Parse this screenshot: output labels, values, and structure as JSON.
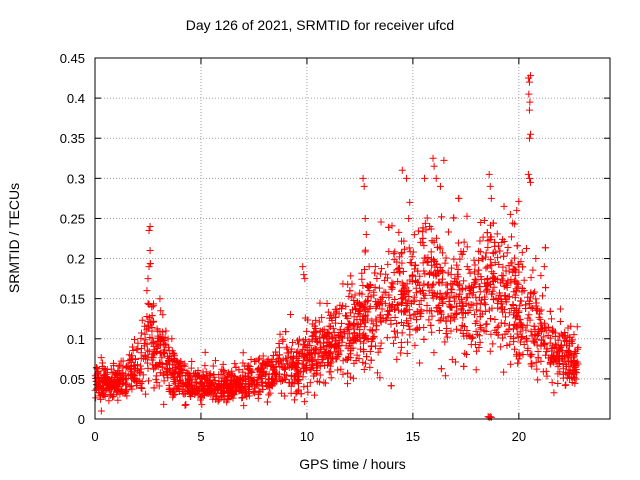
{
  "chart_data": {
    "type": "scatter",
    "title": "Day 126 of 2021, SRMTID for receiver ufcd",
    "xlabel": "GPS time / hours",
    "ylabel": "SRMTID / TECUs",
    "xlim": [
      0,
      24.3
    ],
    "ylim": [
      0,
      0.45
    ],
    "x_ticks": [
      0,
      5,
      10,
      15,
      20
    ],
    "x_tick_labels": [
      "0",
      "5",
      "10",
      "15",
      "20"
    ],
    "y_ticks": [
      0,
      0.05,
      0.1,
      0.15,
      0.2,
      0.25,
      0.3,
      0.35,
      0.4,
      0.45
    ],
    "y_tick_labels": [
      "0",
      "0.05",
      "0.1",
      "0.15",
      "0.2",
      "0.25",
      "0.3",
      "0.35",
      "0.4",
      "0.45"
    ],
    "grid": true,
    "marker": "+",
    "series": [
      {
        "name": "SRMTID",
        "color": "#ff0000",
        "profile_note": "approximate envelope of the dense scatter: hour, typical value, spread",
        "profile": [
          {
            "x": 0.0,
            "y": 0.045,
            "spread": 0.012
          },
          {
            "x": 1.0,
            "y": 0.045,
            "spread": 0.015
          },
          {
            "x": 2.0,
            "y": 0.065,
            "spread": 0.02
          },
          {
            "x": 2.5,
            "y": 0.1,
            "spread": 0.035
          },
          {
            "x": 3.0,
            "y": 0.085,
            "spread": 0.03
          },
          {
            "x": 3.5,
            "y": 0.065,
            "spread": 0.025
          },
          {
            "x": 4.5,
            "y": 0.042,
            "spread": 0.012
          },
          {
            "x": 6.0,
            "y": 0.04,
            "spread": 0.013
          },
          {
            "x": 7.5,
            "y": 0.045,
            "spread": 0.015
          },
          {
            "x": 8.5,
            "y": 0.065,
            "spread": 0.018
          },
          {
            "x": 9.5,
            "y": 0.065,
            "spread": 0.025
          },
          {
            "x": 10.5,
            "y": 0.085,
            "spread": 0.028
          },
          {
            "x": 12.0,
            "y": 0.105,
            "spread": 0.035
          },
          {
            "x": 13.5,
            "y": 0.14,
            "spread": 0.045
          },
          {
            "x": 15.0,
            "y": 0.165,
            "spread": 0.05
          },
          {
            "x": 16.0,
            "y": 0.165,
            "spread": 0.05
          },
          {
            "x": 17.0,
            "y": 0.145,
            "spread": 0.045
          },
          {
            "x": 18.5,
            "y": 0.16,
            "spread": 0.05
          },
          {
            "x": 19.5,
            "y": 0.155,
            "spread": 0.055
          },
          {
            "x": 20.5,
            "y": 0.13,
            "spread": 0.05
          },
          {
            "x": 21.5,
            "y": 0.085,
            "spread": 0.03
          },
          {
            "x": 22.8,
            "y": 0.065,
            "spread": 0.02
          }
        ],
        "spikes": [
          {
            "x": 0.3,
            "y": 0.01
          },
          {
            "x": 2.45,
            "y": 0.16
          },
          {
            "x": 2.5,
            "y": 0.175
          },
          {
            "x": 2.55,
            "y": 0.19
          },
          {
            "x": 2.6,
            "y": 0.21
          },
          {
            "x": 2.55,
            "y": 0.235
          },
          {
            "x": 2.6,
            "y": 0.24
          },
          {
            "x": 3.1,
            "y": 0.135
          },
          {
            "x": 3.2,
            "y": 0.13
          },
          {
            "x": 9.8,
            "y": 0.19
          },
          {
            "x": 9.85,
            "y": 0.18
          },
          {
            "x": 9.9,
            "y": 0.175
          },
          {
            "x": 12.65,
            "y": 0.3
          },
          {
            "x": 12.7,
            "y": 0.29
          },
          {
            "x": 12.75,
            "y": 0.25
          },
          {
            "x": 12.8,
            "y": 0.23
          },
          {
            "x": 14.5,
            "y": 0.31
          },
          {
            "x": 14.7,
            "y": 0.3
          },
          {
            "x": 14.85,
            "y": 0.27
          },
          {
            "x": 14.8,
            "y": 0.25
          },
          {
            "x": 15.55,
            "y": 0.3
          },
          {
            "x": 15.95,
            "y": 0.325
          },
          {
            "x": 16.0,
            "y": 0.315
          },
          {
            "x": 16.1,
            "y": 0.3
          },
          {
            "x": 16.3,
            "y": 0.29
          },
          {
            "x": 18.2,
            "y": 0.245
          },
          {
            "x": 18.6,
            "y": 0.305
          },
          {
            "x": 18.65,
            "y": 0.29
          },
          {
            "x": 18.7,
            "y": 0.275
          },
          {
            "x": 18.55,
            "y": 0.003
          },
          {
            "x": 18.6,
            "y": 0.002
          },
          {
            "x": 18.65,
            "y": 0.003
          },
          {
            "x": 18.7,
            "y": 0.002
          },
          {
            "x": 19.3,
            "y": 0.265
          },
          {
            "x": 19.6,
            "y": 0.255
          },
          {
            "x": 19.9,
            "y": 0.26
          },
          {
            "x": 20.45,
            "y": 0.425
          },
          {
            "x": 20.5,
            "y": 0.42
          },
          {
            "x": 20.55,
            "y": 0.428
          },
          {
            "x": 20.47,
            "y": 0.405
          },
          {
            "x": 20.52,
            "y": 0.395
          },
          {
            "x": 20.5,
            "y": 0.385
          },
          {
            "x": 20.55,
            "y": 0.355
          },
          {
            "x": 20.5,
            "y": 0.35
          },
          {
            "x": 20.45,
            "y": 0.305
          },
          {
            "x": 20.5,
            "y": 0.3
          },
          {
            "x": 20.55,
            "y": 0.295
          },
          {
            "x": 20.8,
            "y": 0.2
          },
          {
            "x": 21.2,
            "y": 0.19
          }
        ]
      }
    ]
  }
}
